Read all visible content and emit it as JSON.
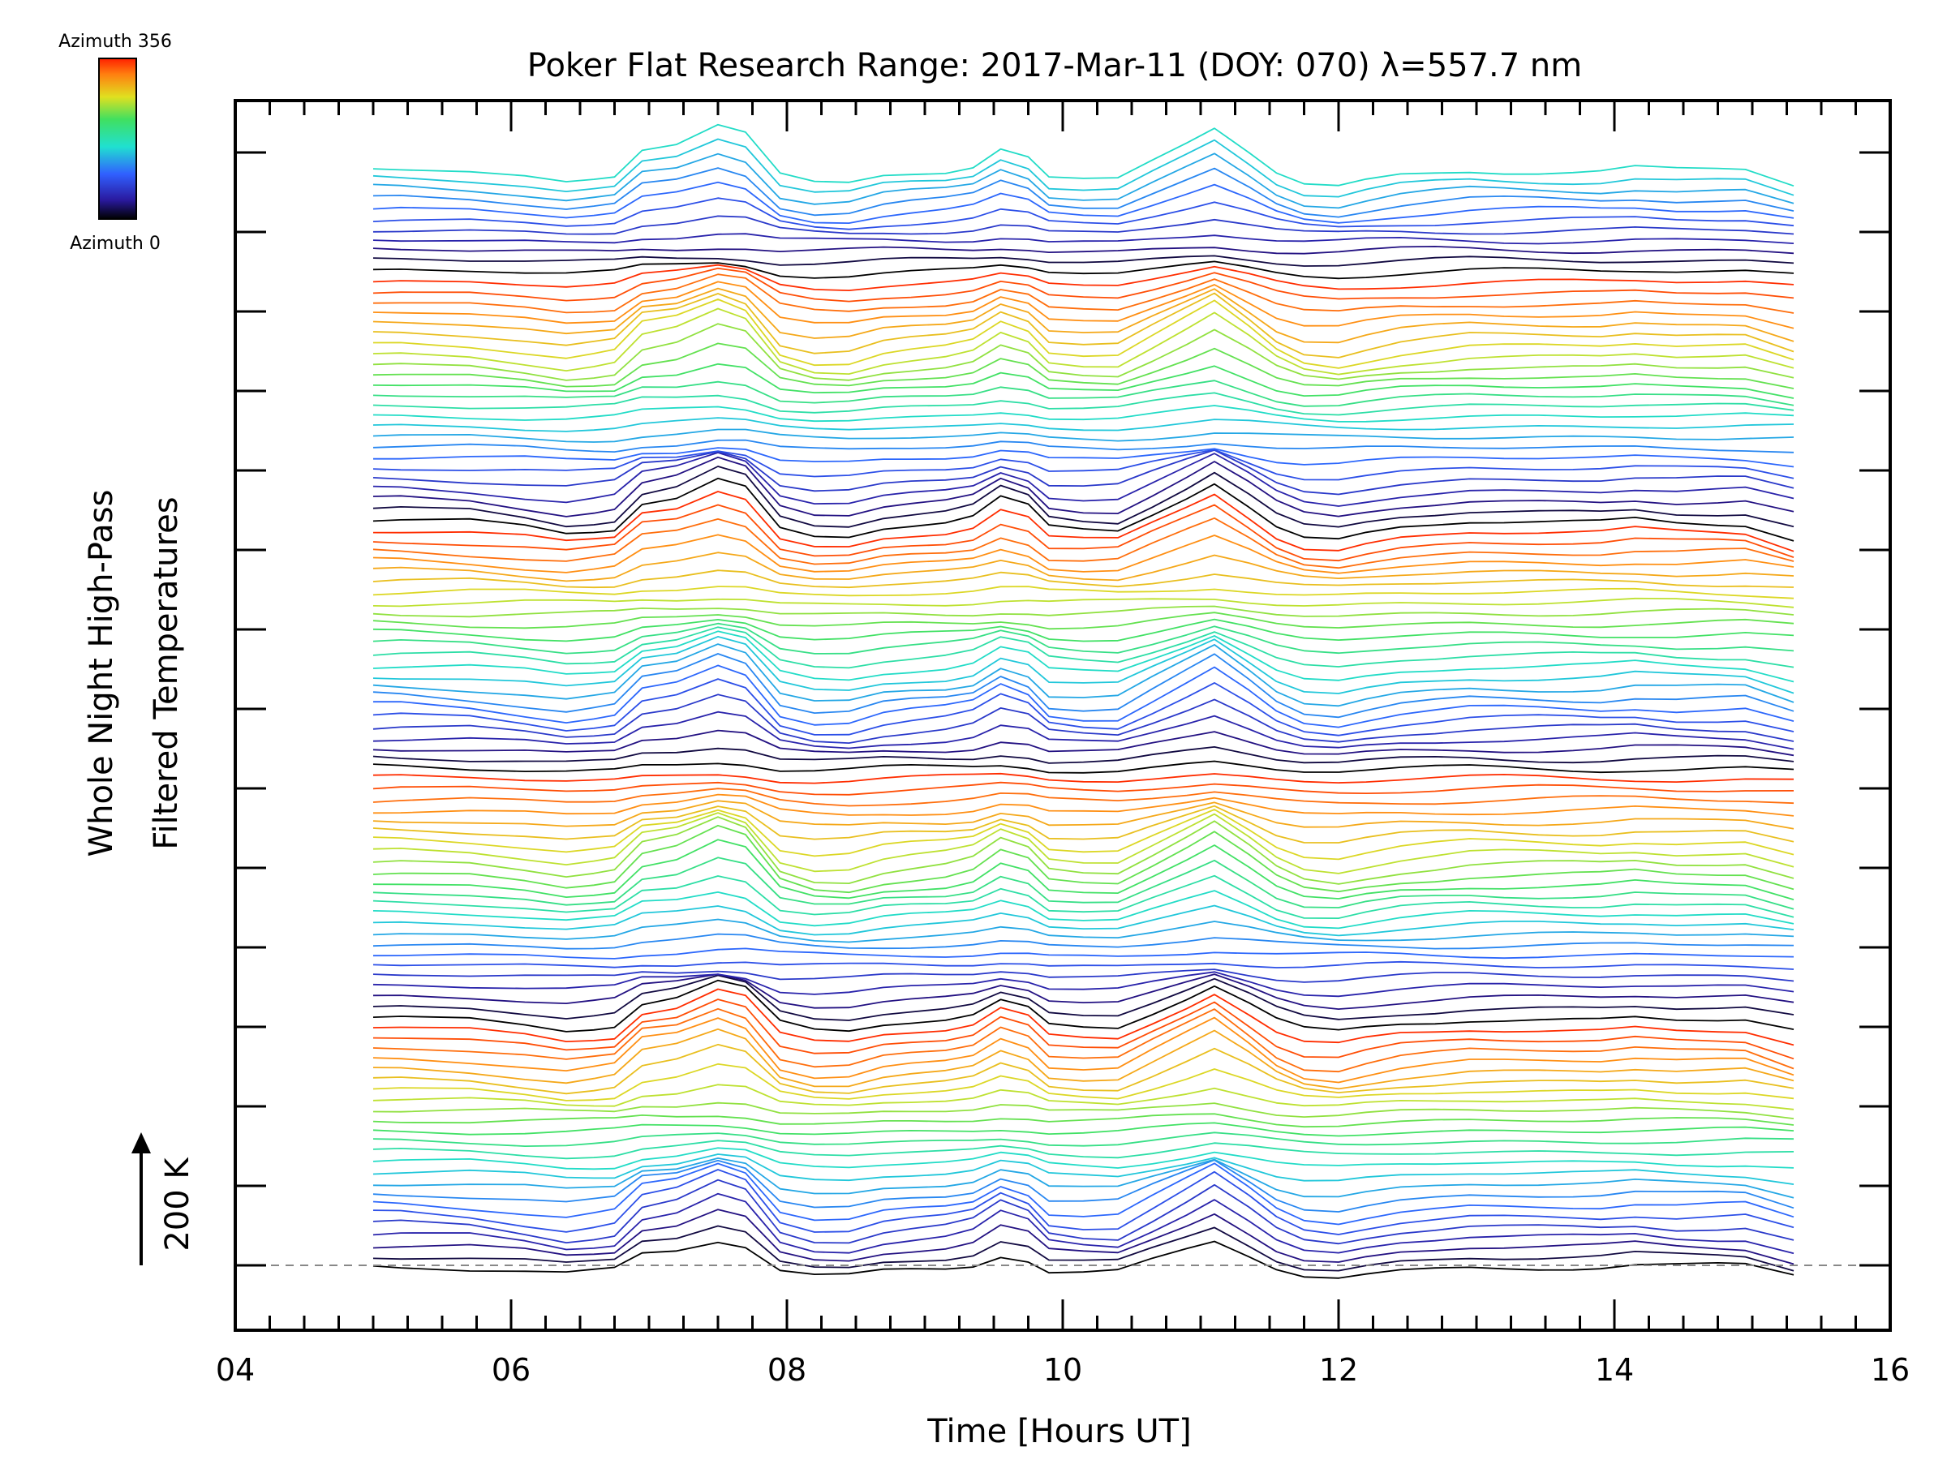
{
  "chart_data": {
    "type": "line",
    "title": "Poker Flat Research Range: 2017-Mar-11 (DOY: 070) λ=557.7 nm",
    "xlabel": "Time [Hours UT]",
    "ylabel": [
      "Whole Night High-Pass",
      "Filtered Temperatures"
    ],
    "scale_label": "200 K",
    "xlim": [
      4,
      16
    ],
    "x_major_ticks": [
      4,
      6,
      8,
      10,
      12,
      14,
      16
    ],
    "x_tick_labels": [
      "04",
      "06",
      "08",
      "10",
      "12",
      "14",
      "16"
    ],
    "x_minor_step": 0.25,
    "y_tick_count": 15,
    "y_tick_spacing_K": 200,
    "y_labels_shown": false,
    "baseline": "dashed",
    "grid": false,
    "colorbar": {
      "top_label": "Azimuth 356",
      "bottom_label": "Azimuth 0",
      "colormap": "rainbow (blue → red)"
    },
    "stacking": "traces offset vertically, ordered by azimuth",
    "time_hours": [
      5.0,
      5.2,
      5.7,
      6.1,
      6.4,
      6.6,
      6.75,
      6.95,
      7.2,
      7.5,
      7.7,
      7.95,
      8.2,
      8.45,
      8.7,
      8.9,
      9.15,
      9.35,
      9.55,
      9.75,
      9.9,
      10.15,
      10.4,
      10.65,
      10.9,
      11.1,
      11.35,
      11.55,
      11.75,
      12.0,
      12.2,
      12.45,
      12.7,
      12.95,
      13.2,
      13.45,
      13.7,
      13.9,
      14.15,
      14.45,
      14.75,
      14.95,
      15.3
    ],
    "series": [
      {
        "name": "Azimuth 0",
        "color": "#000000",
        "values": [
          0,
          0,
          -5,
          -15,
          -25,
          -20,
          -15,
          30,
          40,
          70,
          55,
          -15,
          -30,
          -30,
          -15,
          -10,
          -5,
          5,
          35,
          20,
          -15,
          -20,
          -20,
          10,
          40,
          65,
          25,
          -10,
          -30,
          -35,
          -25,
          -15,
          -10,
          -5,
          -5,
          -5,
          -5,
          -5,
          0,
          -5,
          -5,
          -5,
          -30
        ]
      }
    ],
    "trace_count": 107
  }
}
